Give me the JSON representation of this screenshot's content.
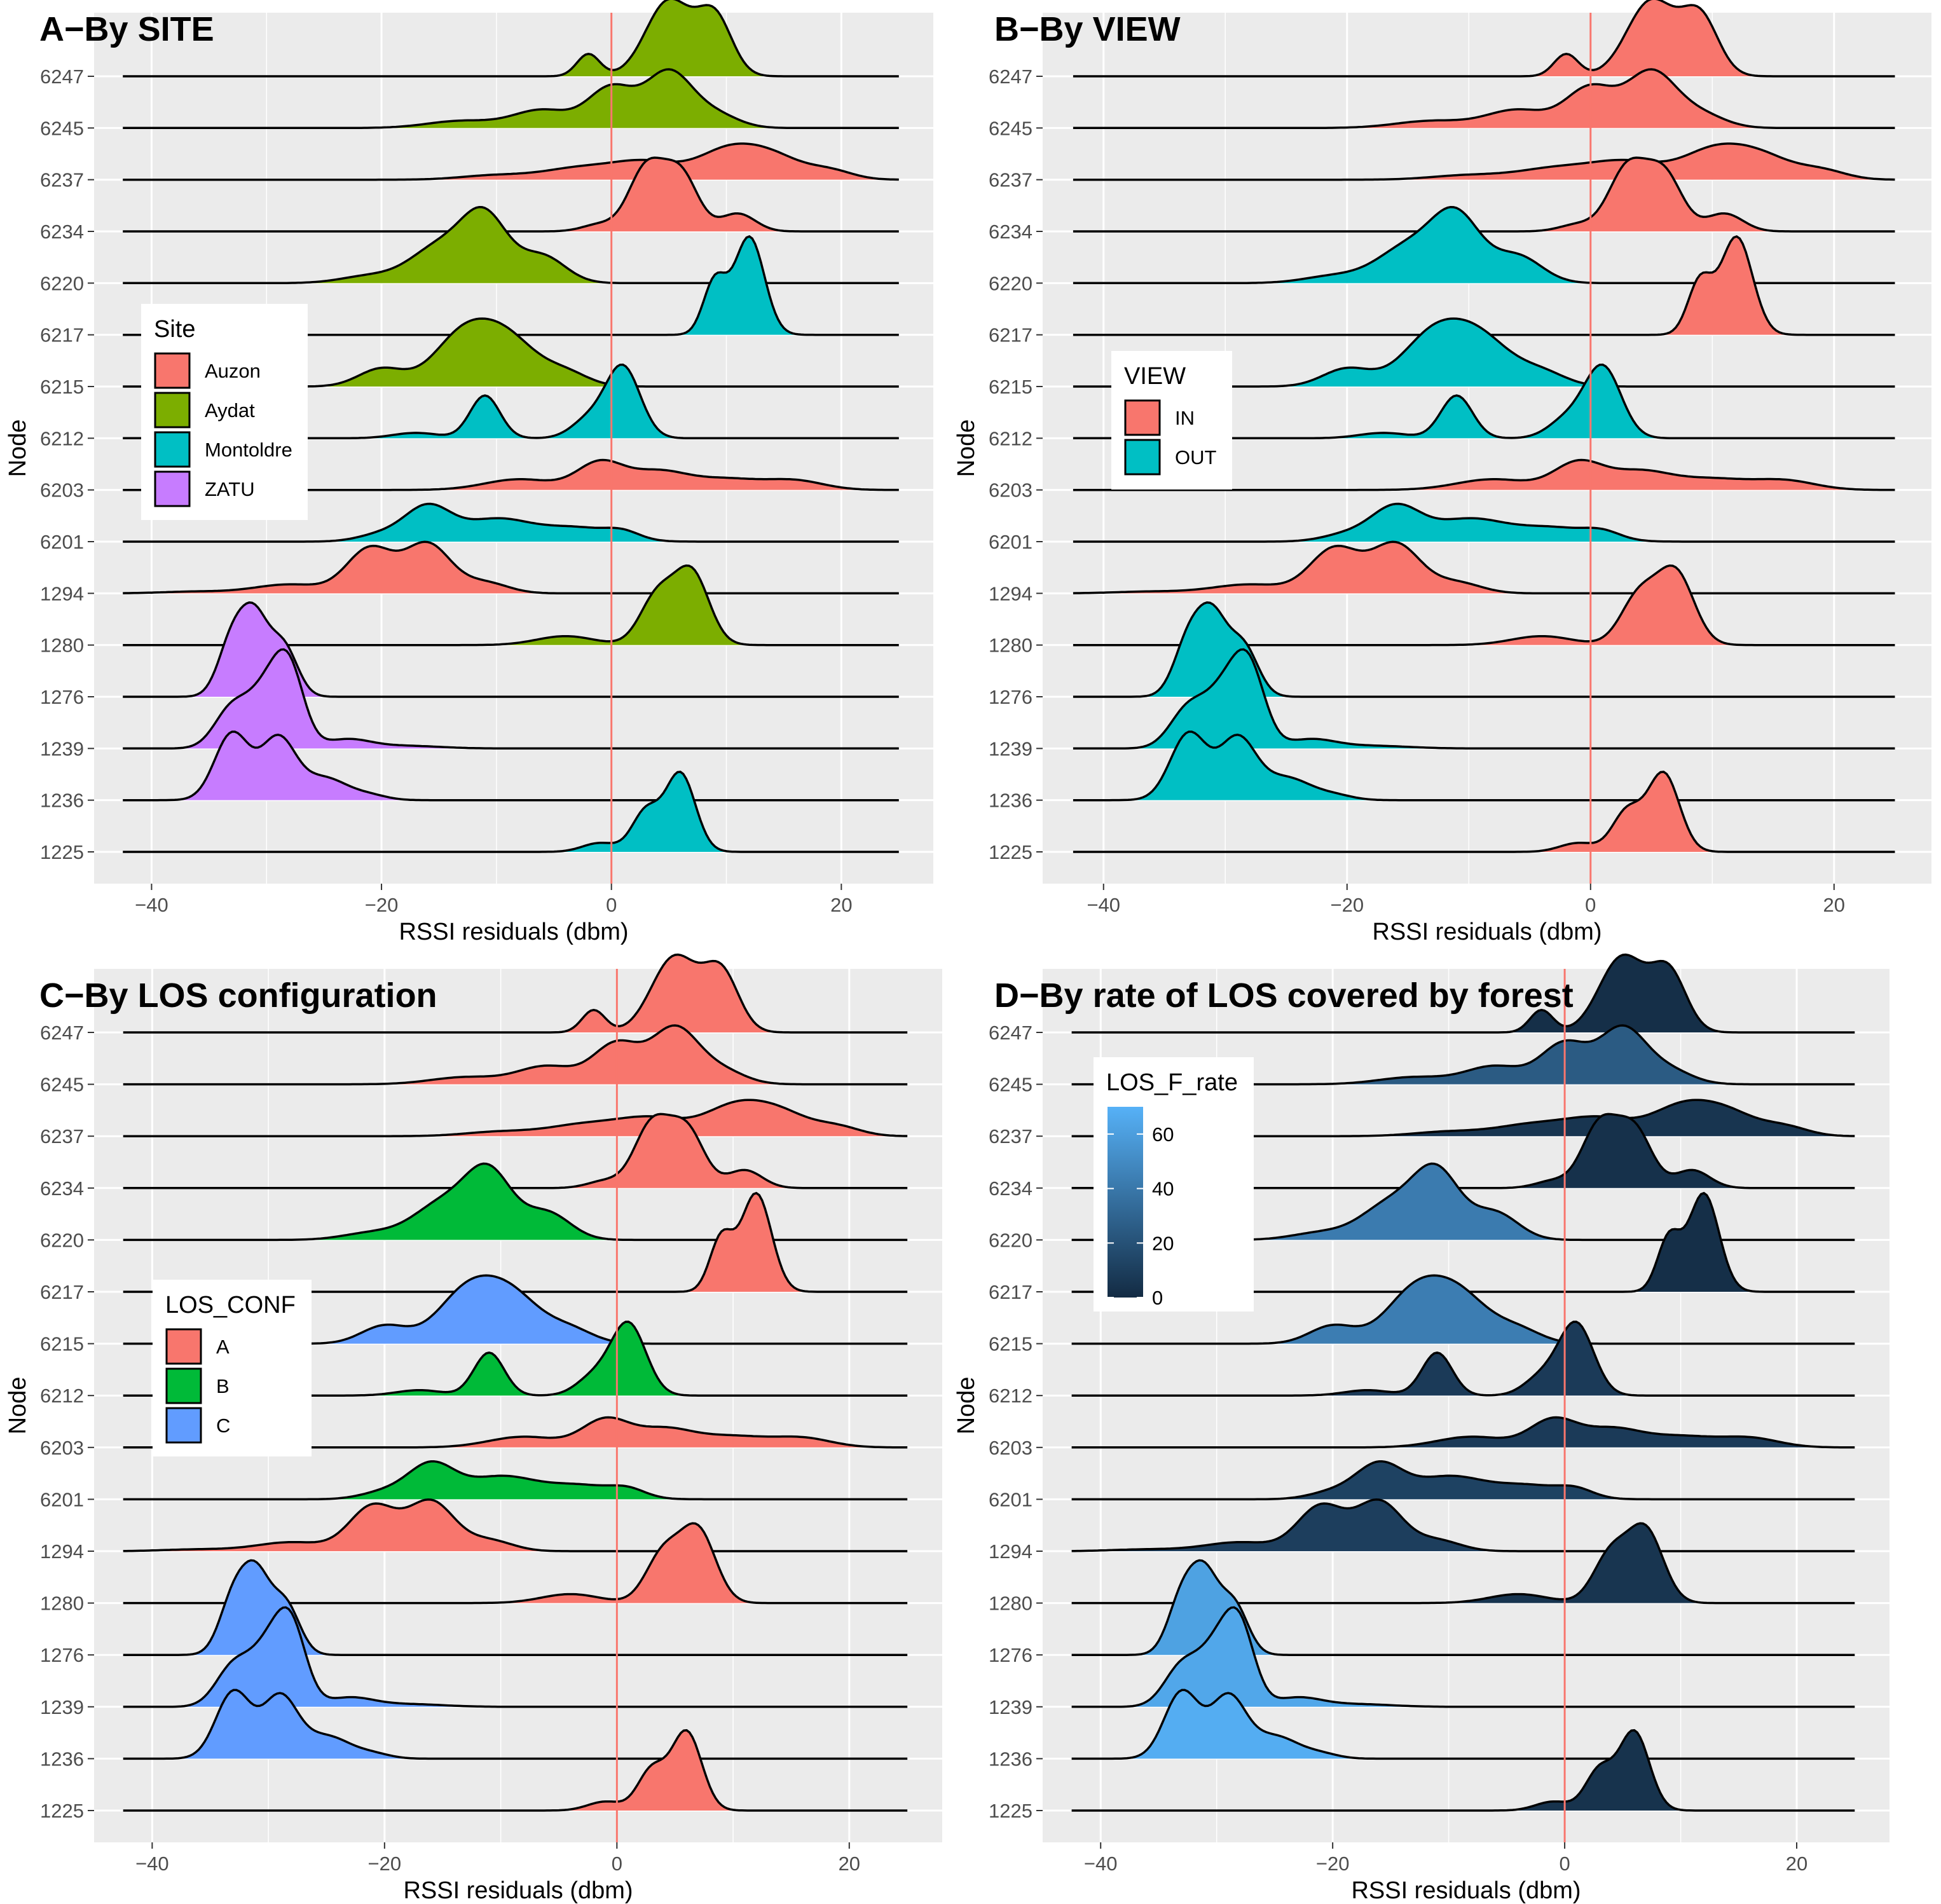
{
  "chart_data": [
    {
      "type": "ridgeline",
      "title": "A−By SITE",
      "xlabel": "RSSI residuals (dbm)",
      "ylabel": "Node",
      "xlim": [
        -45,
        28
      ],
      "xticks": [
        "−40",
        "−20",
        "0",
        "20"
      ],
      "xtick_values": [
        -40,
        -20,
        0,
        20
      ],
      "reference_line_x": 0,
      "legend": {
        "title": "Site",
        "placement": "left",
        "entries": [
          {
            "label": "Auzon",
            "color": "#F8766D"
          },
          {
            "label": "Aydat",
            "color": "#7CAE00"
          },
          {
            "label": "Montoldre",
            "color": "#00BFC4"
          },
          {
            "label": "ZATU",
            "color": "#C77CFF"
          }
        ]
      },
      "categories": [
        "6247",
        "6245",
        "6237",
        "6234",
        "6220",
        "6217",
        "6215",
        "6212",
        "6203",
        "6201",
        "1294",
        "1280",
        "1276",
        "1239",
        "1236",
        "1225"
      ],
      "group": [
        "Aydat",
        "Aydat",
        "Auzon",
        "Auzon",
        "Aydat",
        "Montoldre",
        "Aydat",
        "Montoldre",
        "Auzon",
        "Montoldre",
        "Auzon",
        "Aydat",
        "ZATU",
        "ZATU",
        "ZATU",
        "Montoldre"
      ]
    },
    {
      "type": "ridgeline",
      "title": "B−By VIEW",
      "xlabel": "RSSI residuals (dbm)",
      "ylabel": "Node",
      "xlim": [
        -45,
        28
      ],
      "xticks": [
        "−40",
        "−20",
        "0",
        "20"
      ],
      "xtick_values": [
        -40,
        -20,
        0,
        20
      ],
      "reference_line_x": 0,
      "legend": {
        "title": "VIEW",
        "placement": "left",
        "entries": [
          {
            "label": "IN",
            "color": "#F8766D"
          },
          {
            "label": "OUT",
            "color": "#00BFC4"
          }
        ]
      },
      "categories": [
        "6247",
        "6245",
        "6237",
        "6234",
        "6220",
        "6217",
        "6215",
        "6212",
        "6203",
        "6201",
        "1294",
        "1280",
        "1276",
        "1239",
        "1236",
        "1225"
      ],
      "group": [
        "IN",
        "IN",
        "IN",
        "IN",
        "OUT",
        "IN",
        "OUT",
        "OUT",
        "IN",
        "OUT",
        "IN",
        "IN",
        "OUT",
        "OUT",
        "OUT",
        "IN"
      ]
    },
    {
      "type": "ridgeline",
      "title": "C−By LOS configuration",
      "xlabel": "RSSI residuals (dbm)",
      "ylabel": "Node",
      "xlim": [
        -45,
        28
      ],
      "xticks": [
        "−40",
        "−20",
        "0",
        "20"
      ],
      "xtick_values": [
        -40,
        -20,
        0,
        20
      ],
      "reference_line_x": 0,
      "legend": {
        "title": "LOS_CONF",
        "placement": "left",
        "entries": [
          {
            "label": "A",
            "color": "#F8766D"
          },
          {
            "label": "B",
            "color": "#00BA38"
          },
          {
            "label": "C",
            "color": "#619CFF"
          }
        ]
      },
      "categories": [
        "6247",
        "6245",
        "6237",
        "6234",
        "6220",
        "6217",
        "6215",
        "6212",
        "6203",
        "6201",
        "1294",
        "1280",
        "1276",
        "1239",
        "1236",
        "1225"
      ],
      "group": [
        "A",
        "A",
        "A",
        "A",
        "B",
        "A",
        "C",
        "B",
        "A",
        "B",
        "A",
        "A",
        "C",
        "C",
        "C",
        "A"
      ]
    },
    {
      "type": "ridgeline",
      "title": "D−By rate of LOS covered by forest",
      "xlabel": "RSSI residuals (dbm)",
      "ylabel": "Node",
      "xlim": [
        -45,
        28
      ],
      "xticks": [
        "−40",
        "−20",
        "0",
        "20"
      ],
      "xtick_values": [
        -40,
        -20,
        0,
        20
      ],
      "reference_line_x": 0,
      "legend": {
        "title": "LOS_F_rate",
        "type": "colorbar",
        "placement": "top-left",
        "ticks": [
          "60",
          "40",
          "20",
          "0"
        ],
        "tick_values": [
          60,
          40,
          20,
          0
        ],
        "range": [
          0,
          70
        ],
        "low_color": "#132B43",
        "high_color": "#56B1F7"
      },
      "categories": [
        "6247",
        "6245",
        "6237",
        "6234",
        "6220",
        "6217",
        "6215",
        "6212",
        "6203",
        "6201",
        "1294",
        "1280",
        "1276",
        "1239",
        "1236",
        "1225"
      ],
      "values": [
        2,
        25,
        5,
        3,
        42,
        2,
        43,
        8,
        8,
        12,
        10,
        5,
        62,
        65,
        68,
        4
      ]
    }
  ],
  "densities": {
    "6247": [
      [
        -2,
        1,
        0.25
      ],
      [
        5,
        2,
        0.85
      ],
      [
        9,
        1.5,
        0.65
      ]
    ],
    "6245": [
      [
        -13,
        3,
        0.08
      ],
      [
        -6,
        2.5,
        0.2
      ],
      [
        0,
        2,
        0.45
      ],
      [
        5,
        2,
        0.62
      ],
      [
        9,
        2,
        0.15
      ]
    ],
    "6237": [
      [
        -10,
        3,
        0.05
      ],
      [
        -3,
        3,
        0.12
      ],
      [
        3,
        3,
        0.2
      ],
      [
        10,
        2.5,
        0.3
      ],
      [
        14,
        2.5,
        0.25
      ],
      [
        19,
        2,
        0.1
      ]
    ],
    "6234": [
      [
        3,
        1.5,
        0.7
      ],
      [
        6,
        1.5,
        0.65
      ],
      [
        11,
        1.5,
        0.2
      ],
      [
        -1,
        1.5,
        0.08
      ]
    ],
    "6220": [
      [
        -21,
        2.5,
        0.08
      ],
      [
        -15,
        2.5,
        0.4
      ],
      [
        -11,
        2,
        0.72
      ],
      [
        -6,
        2,
        0.3
      ]
    ],
    "6217": [
      [
        9,
        1,
        0.6
      ],
      [
        12,
        1.3,
        1.1
      ]
    ],
    "6215": [
      [
        -20,
        2,
        0.2
      ],
      [
        -13,
        2.5,
        0.55
      ],
      [
        -9,
        2.5,
        0.5
      ],
      [
        -4,
        2,
        0.15
      ]
    ],
    "6212": [
      [
        -17,
        2,
        0.06
      ],
      [
        -11,
        1.3,
        0.48
      ],
      [
        -2,
        1.5,
        0.2
      ],
      [
        1,
        1.5,
        0.8
      ]
    ],
    "6203": [
      [
        -8,
        3,
        0.12
      ],
      [
        -1,
        2,
        0.3
      ],
      [
        4,
        2.5,
        0.2
      ],
      [
        10,
        3,
        0.12
      ],
      [
        16,
        2.5,
        0.1
      ]
    ],
    "6201": [
      [
        -20,
        2,
        0.08
      ],
      [
        -16,
        2,
        0.38
      ],
      [
        -10,
        3,
        0.25
      ],
      [
        -3,
        3,
        0.15
      ],
      [
        1,
        1.5,
        0.08
      ]
    ],
    "1294": [
      [
        -36,
        3,
        0.02
      ],
      [
        -28,
        3,
        0.1
      ],
      [
        -21,
        2,
        0.5
      ],
      [
        -16,
        2,
        0.55
      ],
      [
        -11,
        2,
        0.12
      ]
    ],
    "1280": [
      [
        -4,
        2.5,
        0.1
      ],
      [
        4,
        1.5,
        0.55
      ],
      [
        7,
        1.5,
        0.8
      ]
    ],
    "1276": [
      [
        -33,
        1.2,
        0.62
      ],
      [
        -31,
        1.2,
        0.82
      ],
      [
        -28.5,
        1.2,
        0.55
      ]
    ],
    "1239": [
      [
        -33,
        1.5,
        0.45
      ],
      [
        -30,
        1.5,
        0.6
      ],
      [
        -28,
        1.3,
        0.8
      ],
      [
        -23,
        2,
        0.1
      ],
      [
        -18,
        3,
        0.03
      ]
    ],
    "1236": [
      [
        -33,
        1.5,
        0.75
      ],
      [
        -29,
        1.5,
        0.68
      ],
      [
        -25,
        2,
        0.25
      ],
      [
        -21,
        1.5,
        0.05
      ]
    ],
    "1225": [
      [
        -1,
        1.5,
        0.1
      ],
      [
        3,
        1.2,
        0.45
      ],
      [
        6,
        1.3,
        0.88
      ]
    ]
  },
  "cells": [
    {
      "colors": {
        "Auzon": "#F8766D",
        "Aydat": "#7CAE00",
        "Montoldre": "#00BFC4",
        "ZATU": "#C77CFF"
      }
    },
    {
      "colors": {
        "IN": "#F8766D",
        "OUT": "#00BFC4"
      }
    },
    {
      "colors": {
        "A": "#F8766D",
        "B": "#00BA38",
        "C": "#619CFF"
      }
    },
    {
      "colors": {}
    }
  ]
}
